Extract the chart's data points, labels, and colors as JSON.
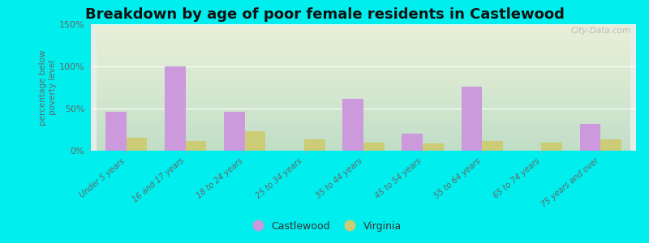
{
  "title": "Breakdown by age of poor female residents in Castlewood",
  "categories": [
    "Under 5 years",
    "16 and 17 years",
    "18 to 24 years",
    "25 to 34 years",
    "35 to 44 years",
    "45 to 54 years",
    "55 to 64 years",
    "65 to 74 years",
    "75 years and over"
  ],
  "castlewood": [
    46,
    100,
    46,
    0,
    62,
    20,
    76,
    0,
    32
  ],
  "virginia": [
    15,
    12,
    23,
    13,
    10,
    9,
    12,
    10,
    13
  ],
  "castlewood_color": "#cc99dd",
  "virginia_color": "#cccc77",
  "background_outer": "#00eeee",
  "ylabel": "percentage below\npoverty level",
  "ylim": [
    0,
    150
  ],
  "yticks": [
    0,
    50,
    100,
    150
  ],
  "ytick_labels": [
    "0%",
    "50%",
    "100%",
    "150%"
  ],
  "title_fontsize": 13,
  "bar_width": 0.35,
  "watermark": "City-Data.com"
}
